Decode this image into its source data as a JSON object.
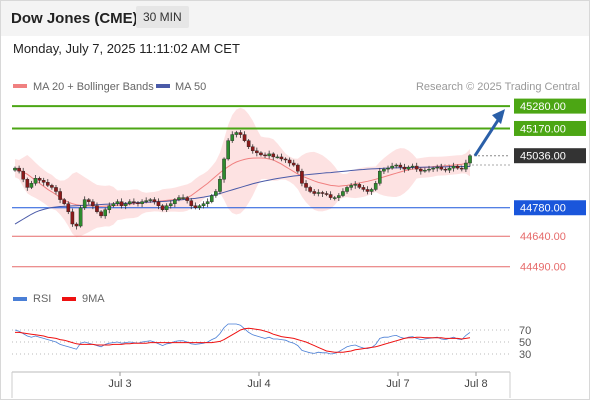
{
  "header": {
    "title": "Dow Jones (CME)",
    "timeframe": "30 MIN"
  },
  "datetime": "Monday, July 7, 2025 11:11:02 AM CET",
  "watermark": "Research © 2025 Trading Central",
  "colors": {
    "bull": "#2e8b2e",
    "bear": "#8b1a1a",
    "ma20": "#f08080",
    "ma50": "#4a5aa8",
    "bands": "#fcd8d8",
    "resistance": "#4ca614",
    "pivot": "#1a56db",
    "support": "#e66a6a",
    "rsi": "#4a7fd6",
    "rsi_ma": "#e11",
    "current": "#333333",
    "arrow": "#2a5fa8"
  },
  "chart_data": [
    {
      "type": "candlestick",
      "legend": [
        {
          "name": "MA 20 + Bollinger Bands",
          "color": "#f08080"
        },
        {
          "name": "MA 50",
          "color": "#4a5aa8"
        }
      ],
      "x_labels": [
        "Jul 3",
        "Jul 4",
        "Jul 7",
        "Jul 8"
      ],
      "y_range": [
        44400,
        45310
      ],
      "levels": [
        {
          "label": "45280.00",
          "value": 45280,
          "kind": "resistance"
        },
        {
          "label": "45170.00",
          "value": 45170,
          "kind": "resistance"
        },
        {
          "label": "45036.00",
          "value": 45036,
          "kind": "current"
        },
        {
          "label": "44780.00",
          "value": 44780,
          "kind": "pivot"
        },
        {
          "label": "44640.00",
          "value": 44640,
          "kind": "support"
        },
        {
          "label": "44490.00",
          "value": 44490,
          "kind": "support"
        }
      ],
      "closes": [
        44975,
        44960,
        44920,
        44880,
        44900,
        44925,
        44915,
        44905,
        44890,
        44880,
        44860,
        44820,
        44800,
        44760,
        44700,
        44690,
        44780,
        44820,
        44810,
        44790,
        44760,
        44740,
        44770,
        44790,
        44800,
        44810,
        44790,
        44800,
        44810,
        44805,
        44800,
        44810,
        44815,
        44820,
        44810,
        44790,
        44770,
        44790,
        44800,
        44820,
        44830,
        44830,
        44815,
        44790,
        44780,
        44790,
        44800,
        44810,
        44840,
        44860,
        44920,
        45020,
        45110,
        45140,
        45150,
        45140,
        45110,
        45080,
        45060,
        45050,
        45040,
        45035,
        45045,
        45030,
        45030,
        45020,
        45015,
        45000,
        44990,
        44960,
        44900,
        44880,
        44860,
        44850,
        44855,
        44850,
        44845,
        44830,
        44830,
        44840,
        44860,
        44880,
        44890,
        44895,
        44880,
        44870,
        44860,
        44870,
        44900,
        44960,
        44970,
        44975,
        44985,
        44990,
        44980,
        44970,
        44980,
        44985,
        44970,
        44960,
        44965,
        44970,
        44975,
        44980,
        44970,
        44965,
        44975,
        44985,
        44975,
        44970,
        45000,
        45036
      ],
      "ma20": [
        44975,
        44968,
        44955,
        44945,
        44930,
        44915,
        44900,
        44885,
        44870,
        44858,
        44845,
        44830,
        44818,
        44808,
        44800,
        44795,
        44792,
        44790,
        44789,
        44788,
        44787,
        44787,
        44788,
        44789,
        44790,
        44792,
        44794,
        44796,
        44798,
        44800,
        44802,
        44804,
        44806,
        44808,
        44810,
        44812,
        44814,
        44816,
        44818,
        44820,
        44822,
        44825,
        44830,
        44840,
        44855,
        44870,
        44885,
        44900,
        44918,
        44935,
        44952,
        44968,
        44982,
        44995,
        45005,
        45012,
        45018,
        45022,
        45024,
        45025,
        45025,
        45024,
        45020,
        45015,
        45005,
        44995,
        44982,
        44970,
        44958,
        44946,
        44936,
        44928,
        44920,
        44912,
        44905,
        44900,
        44895,
        44890,
        44888,
        44886,
        44888,
        44890,
        44894,
        44898,
        44902,
        44906,
        44910,
        44915,
        44920,
        44926,
        44932,
        44938,
        44944,
        44950,
        44956,
        44962,
        44966,
        44970,
        44973,
        44976,
        44978,
        44980,
        44982,
        44984,
        44985,
        44986,
        44988,
        44990,
        44992,
        44994,
        44998,
        45002
      ],
      "ma50": [
        44700,
        44712,
        44724,
        44736,
        44748,
        44758,
        44766,
        44772,
        44777,
        44781,
        44784,
        44786,
        44787,
        44788,
        44789,
        44790,
        44791,
        44792,
        44793,
        44794,
        44795,
        44796,
        44797,
        44798,
        44799,
        44800,
        44801,
        44802,
        44803,
        44804,
        44805,
        44806,
        44807,
        44808,
        44809,
        44810,
        44811,
        44812,
        44814,
        44816,
        44818,
        44820,
        44822,
        44824,
        44826,
        44829,
        44832,
        44836,
        44840,
        44845,
        44850,
        44856,
        44862,
        44868,
        44874,
        44880,
        44886,
        44892,
        44898,
        44903,
        44908,
        44912,
        44916,
        44920,
        44924,
        44927,
        44930,
        44933,
        44936,
        44938,
        44940,
        44942,
        44944,
        44946,
        44948,
        44950,
        44952,
        44953,
        44955,
        44957,
        44959,
        44961,
        44963,
        44965,
        44967,
        44968,
        44970,
        44971,
        44972,
        44973,
        44974,
        44975,
        44976,
        44976,
        44977,
        44977,
        44978,
        44978,
        44979,
        44979,
        44980,
        44980,
        44980,
        44981,
        44981,
        44981,
        44982,
        44982,
        44982,
        44983,
        44983,
        44983
      ]
    },
    {
      "type": "line",
      "legend": [
        {
          "name": "RSI",
          "color": "#4a7fd6"
        },
        {
          "name": "9MA",
          "color": "#e11"
        }
      ],
      "y_ticks": [
        "70",
        "50",
        "30"
      ],
      "y_range": [
        10,
        90
      ],
      "rsi": [
        70,
        68,
        64,
        60,
        58,
        60,
        58,
        56,
        54,
        52,
        50,
        46,
        44,
        42,
        40,
        38,
        48,
        50,
        48,
        46,
        44,
        42,
        46,
        48,
        49,
        50,
        48,
        49,
        50,
        49,
        48,
        50,
        51,
        52,
        50,
        47,
        44,
        47,
        48,
        51,
        52,
        52,
        50,
        47,
        46,
        47,
        48,
        50,
        54,
        57,
        64,
        74,
        80,
        80,
        80,
        78,
        72,
        66,
        62,
        60,
        58,
        56,
        58,
        55,
        55,
        54,
        53,
        50,
        48,
        44,
        36,
        34,
        32,
        31,
        33,
        32,
        32,
        30,
        31,
        34,
        38,
        42,
        44,
        45,
        42,
        40,
        39,
        41,
        46,
        56,
        58,
        58,
        60,
        61,
        58,
        56,
        58,
        59,
        56,
        54,
        55,
        56,
        57,
        58,
        55,
        54,
        56,
        58,
        55,
        54,
        61,
        66
      ],
      "rsi_ma": [
        66,
        66,
        65,
        64,
        63,
        62,
        61,
        60,
        58,
        57,
        56,
        54,
        53,
        51,
        49,
        47,
        46,
        46,
        46,
        46,
        45,
        45,
        45,
        45,
        46,
        46,
        46,
        47,
        47,
        48,
        48,
        48,
        48,
        49,
        49,
        49,
        49,
        49,
        49,
        49,
        49,
        49,
        49,
        49,
        49,
        49,
        49,
        49,
        49,
        50,
        51,
        54,
        58,
        62,
        66,
        70,
        72,
        73,
        72,
        71,
        70,
        68,
        66,
        63,
        61,
        59,
        58,
        57,
        56,
        54,
        52,
        50,
        47,
        44,
        41,
        38,
        35,
        34,
        33,
        33,
        33,
        34,
        35,
        37,
        38,
        39,
        40,
        41,
        42,
        44,
        46,
        48,
        50,
        52,
        54,
        56,
        57,
        57,
        58,
        58,
        57,
        57,
        57,
        57,
        57,
        56,
        56,
        56,
        56,
        55,
        56,
        57
      ]
    }
  ]
}
